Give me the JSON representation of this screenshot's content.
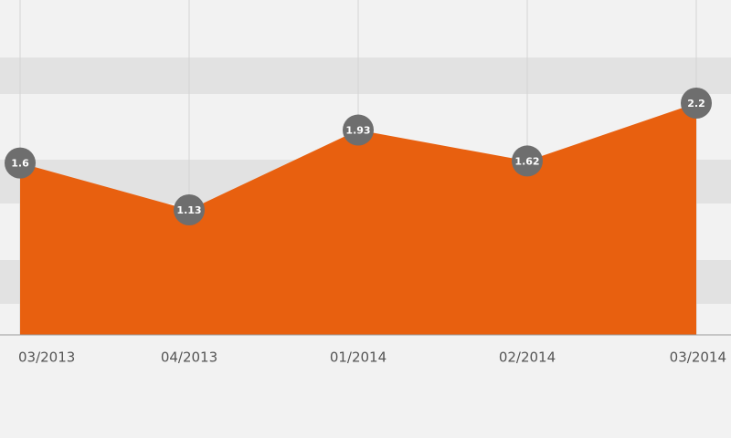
{
  "chart_data": {
    "type": "area",
    "categories": [
      "03/2013",
      "04/2013",
      "01/2014",
      "02/2014",
      "03/2014"
    ],
    "values": [
      1.6,
      1.13,
      1.93,
      1.62,
      2.2
    ],
    "color": "#e8600f",
    "marker_color": "#6e6e6e",
    "grid": true
  }
}
